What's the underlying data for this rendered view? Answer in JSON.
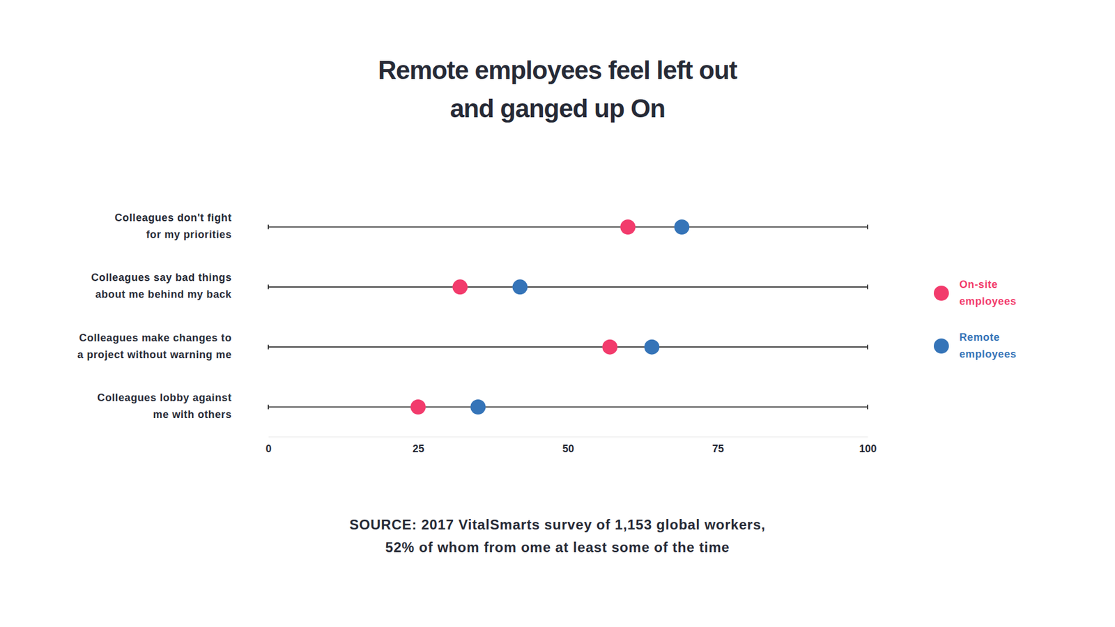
{
  "chart_data": {
    "type": "dot",
    "title": "Remote employees feel left out\nand ganged up On",
    "orientation": "horizontal",
    "categories": [
      "Colleagues don't fight\nfor my priorities",
      "Colleagues say bad things\nabout me behind my back",
      "Colleagues make changes to\na project without warning me",
      "Colleagues lobby against\nme with others"
    ],
    "series": [
      {
        "name": "On-site\nemployees",
        "color": "#f23b6c",
        "marker": "circle",
        "values": [
          60,
          32,
          57,
          25
        ]
      },
      {
        "name": "Remote\nemployees",
        "color": "#3574b8",
        "marker": "circle",
        "values": [
          69,
          42,
          64,
          35
        ]
      }
    ],
    "xlim": [
      0,
      100
    ],
    "xticks": [
      0,
      25,
      50,
      75,
      100
    ],
    "grid": false,
    "legend": "right",
    "source": "SOURCE: 2017 VitalSmarts survey of 1,153 global workers,\n52% of whom from ome at least some of the time"
  }
}
